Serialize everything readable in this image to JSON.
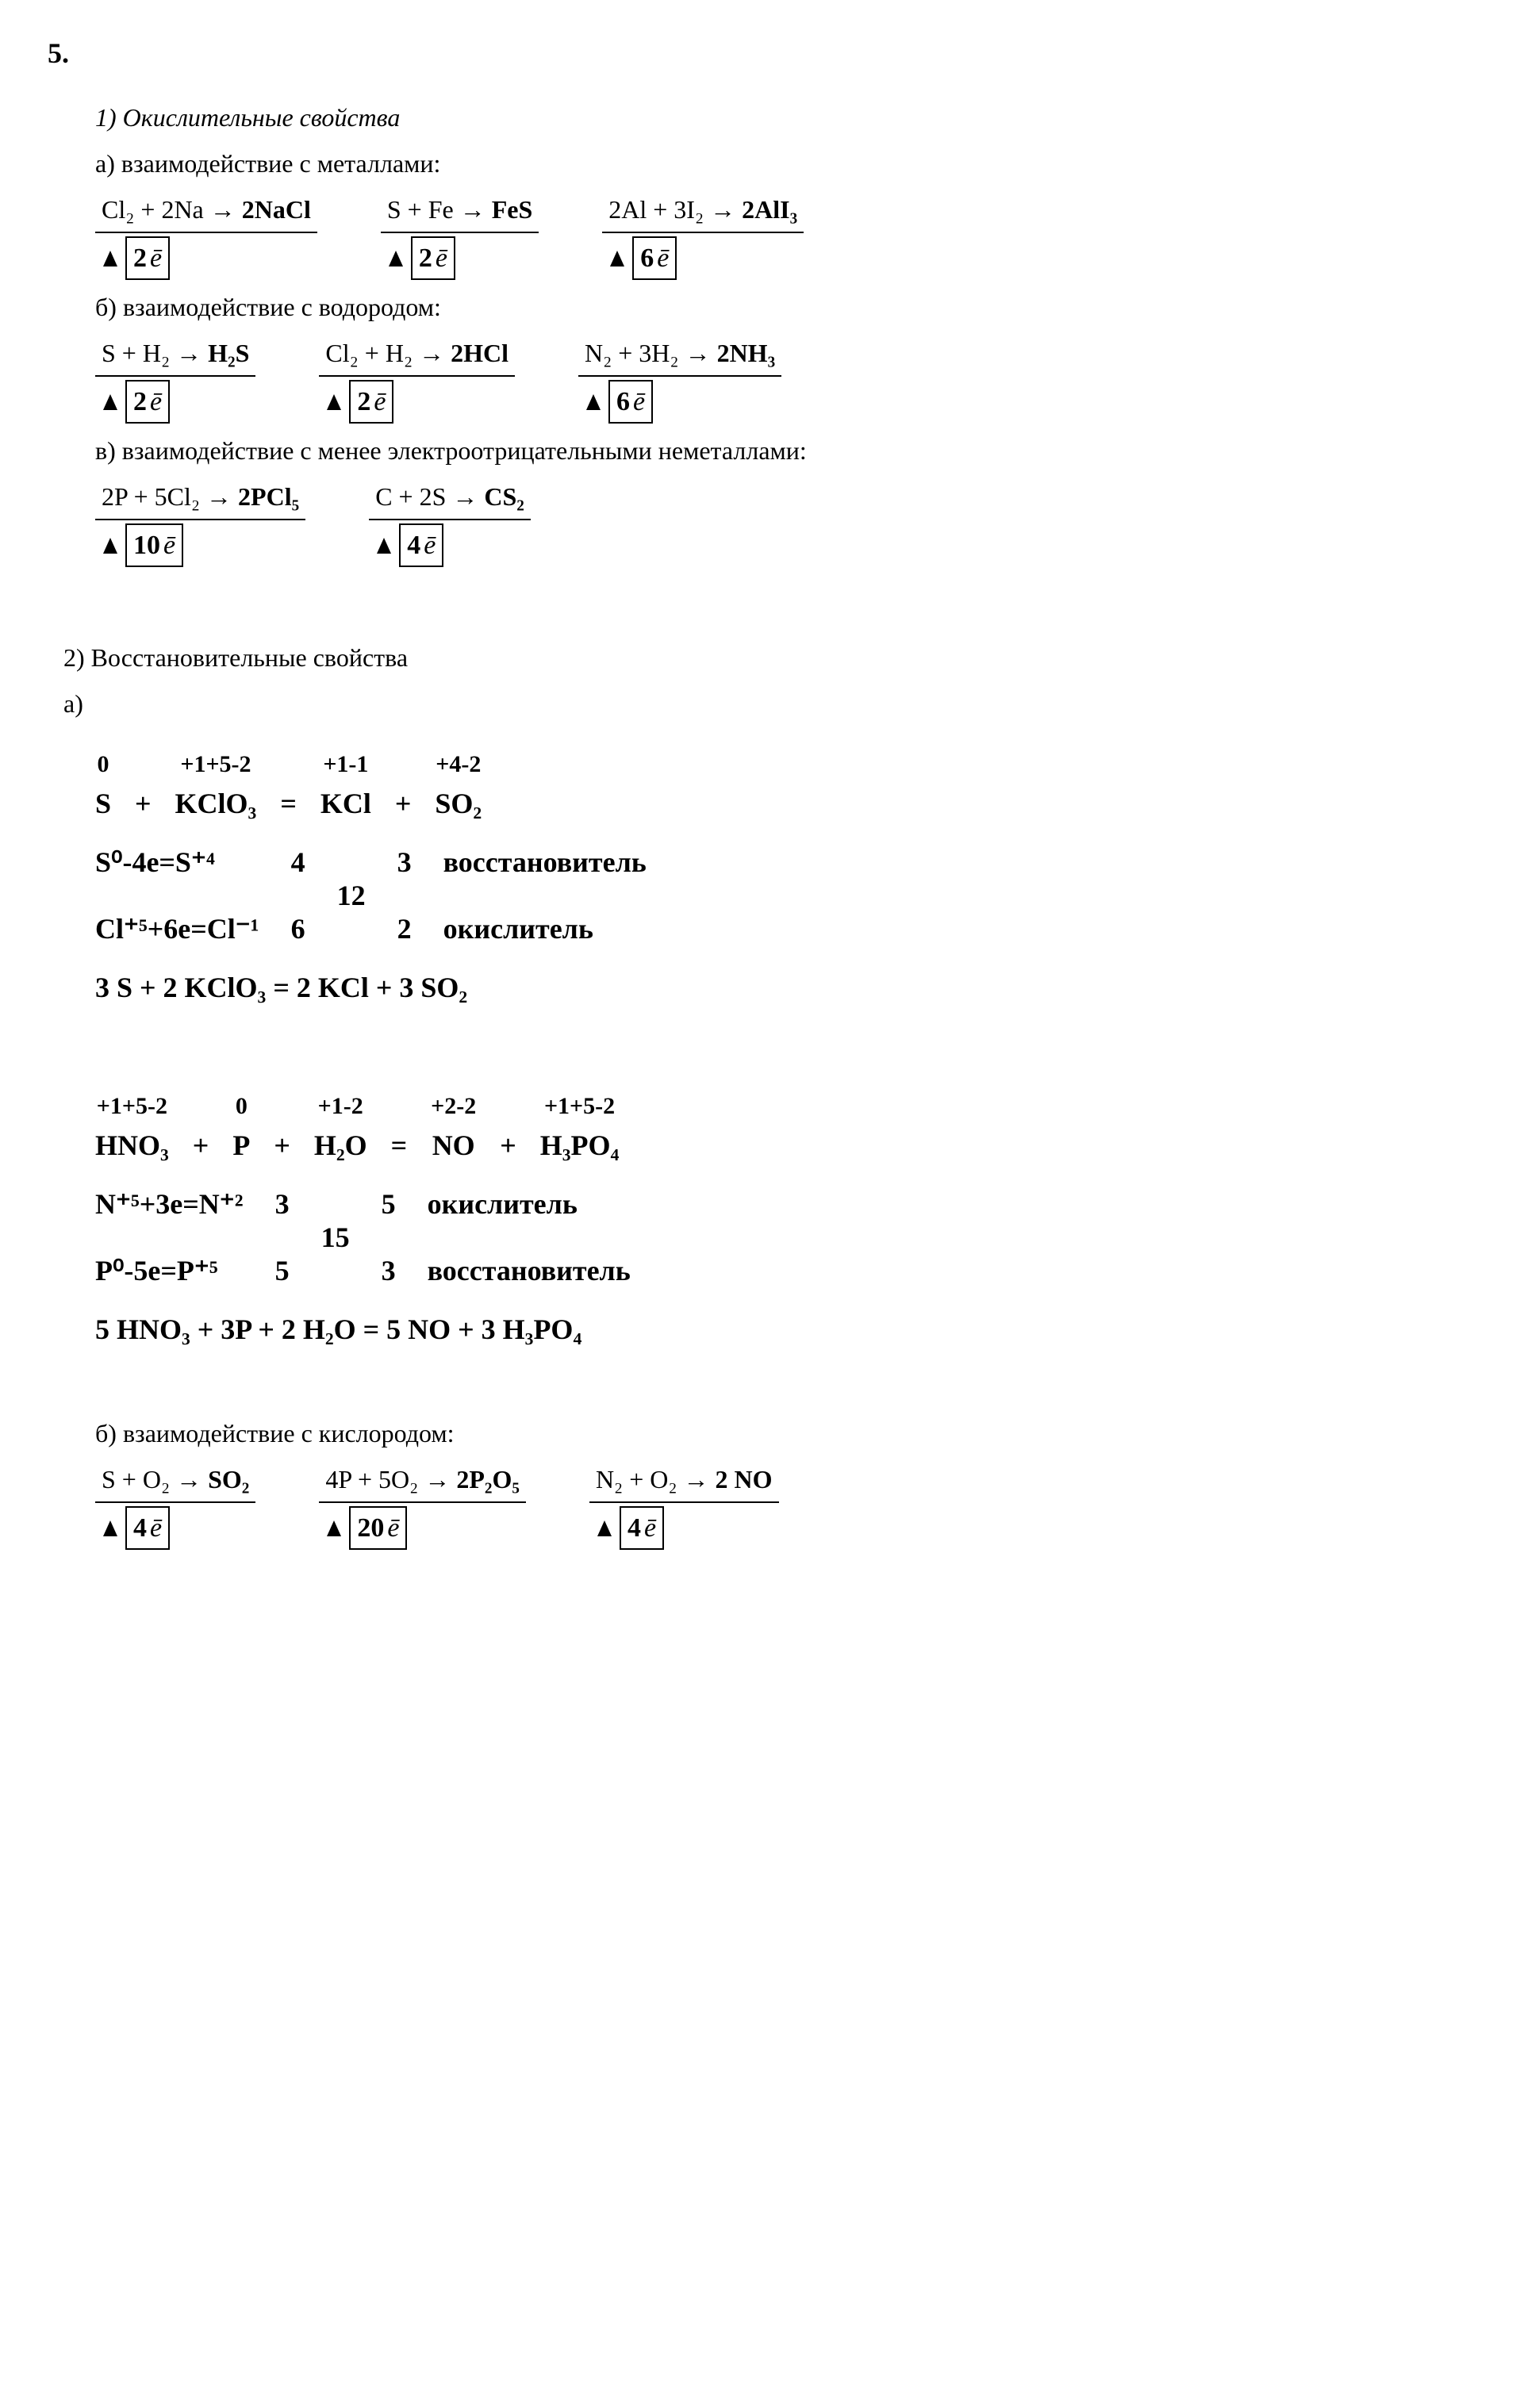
{
  "problem_number": "5.",
  "section1": {
    "title": "1) Окислительные свойства",
    "a": {
      "label": "а) взаимодействие с металлами:",
      "eq1": {
        "lhs": "Cl₂ + 2Na →",
        "rhs": "2NaCl",
        "e": "2"
      },
      "eq2": {
        "lhs": "S + Fe →",
        "rhs": "FeS",
        "e": "2"
      },
      "eq3": {
        "lhs": "2Al + 3I₂ →",
        "rhs": "2AlI₃",
        "e": "6"
      }
    },
    "b": {
      "label": "б) взаимодействие с водородом:",
      "eq1": {
        "lhs": "S + H₂ →",
        "rhs": "H₂S",
        "e": "2"
      },
      "eq2": {
        "lhs": "Cl₂ + H₂ →",
        "rhs": "2HCl",
        "e": "2"
      },
      "eq3": {
        "lhs": "N₂ + 3H₂ →",
        "rhs": "2NH₃",
        "e": "6"
      }
    },
    "c": {
      "label": "в) взаимодействие с менее электроотрицательными неметаллами:",
      "eq1": {
        "lhs": "2P + 5Cl₂ →",
        "rhs": "2PCl₅",
        "e": "10"
      },
      "eq2": {
        "lhs": "C + 2S →",
        "rhs": "CS₂",
        "e": "4"
      }
    }
  },
  "section2": {
    "title": "2) Восстановительные свойства",
    "a_label": "а)",
    "rxn1": {
      "terms": [
        {
          "charge": "0",
          "mol": "S"
        },
        {
          "charge": "",
          "mol": "+"
        },
        {
          "charge": "+1+5-2",
          "mol": "KClO₃"
        },
        {
          "charge": "",
          "mol": "="
        },
        {
          "charge": "+1-1",
          "mol": "KCl"
        },
        {
          "charge": "",
          "mol": "+"
        },
        {
          "charge": "+4-2",
          "mol": "SO₂"
        }
      ],
      "half1": "S⁰-4e=S⁺⁴",
      "half2": "Cl⁺⁵+6e=Cl⁻¹",
      "n1": "4",
      "n2": "6",
      "lcm": "12",
      "c1": "3",
      "c2": "2",
      "role1": "восстановитель",
      "role2": "окислитель",
      "final": "3 S  +  2 KClO₃  =  2 KCl  +  3 SO₂"
    },
    "rxn2": {
      "terms": [
        {
          "charge": "+1+5-2",
          "mol": "HNO₃"
        },
        {
          "charge": "",
          "mol": "+"
        },
        {
          "charge": "0",
          "mol": "P"
        },
        {
          "charge": "",
          "mol": "+"
        },
        {
          "charge": "+1-2",
          "mol": "H₂O"
        },
        {
          "charge": "",
          "mol": "="
        },
        {
          "charge": "+2-2",
          "mol": "NO"
        },
        {
          "charge": "",
          "mol": "+"
        },
        {
          "charge": "+1+5-2",
          "mol": "H₃PO₄"
        }
      ],
      "half1": "N⁺⁵+3e=N⁺²",
      "half2": "P⁰-5e=P⁺⁵",
      "n1": "3",
      "n2": "5",
      "lcm": "15",
      "c1": "5",
      "c2": "3",
      "role1": "окислитель",
      "role2": "восстановитель",
      "final": "5 HNO₃  +  3P  +  2 H₂O  =  5 NO  +  3 H₃PO₄"
    },
    "b": {
      "label": "б) взаимодействие с кислородом:",
      "eq1": {
        "lhs": "S + O₂ →",
        "rhs": "SO₂",
        "e": "4"
      },
      "eq2": {
        "lhs": "4P + 5O₂ →",
        "rhs": "2P₂O₅",
        "e": "20"
      },
      "eq3": {
        "lhs": "N₂ + O₂ →",
        "rhs": "2 NO",
        "e": "4"
      }
    }
  },
  "e_symbol": "ē"
}
